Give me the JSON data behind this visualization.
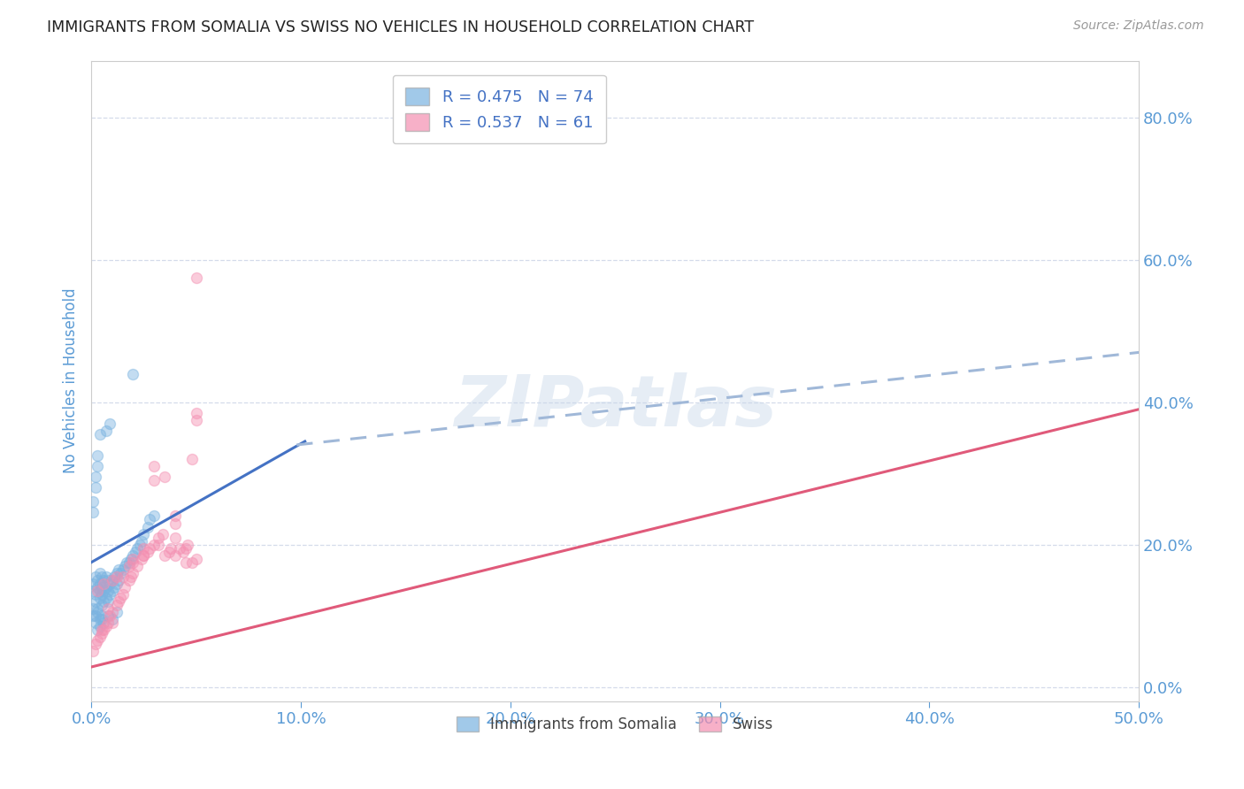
{
  "title": "IMMIGRANTS FROM SOMALIA VS SWISS NO VEHICLES IN HOUSEHOLD CORRELATION CHART",
  "source": "Source: ZipAtlas.com",
  "ylabel": "No Vehicles in Household",
  "xlim": [
    0.0,
    0.5
  ],
  "ylim": [
    -0.02,
    0.88
  ],
  "yticks": [
    0.0,
    0.2,
    0.4,
    0.6,
    0.8
  ],
  "xticks": [
    0.0,
    0.1,
    0.2,
    0.3,
    0.4,
    0.5
  ],
  "background_color": "#ffffff",
  "grid_color": "#d0d8e8",
  "axis_label_color": "#5b9bd5",
  "tick_label_color": "#5b9bd5",
  "blue_color": "#7ab3e0",
  "pink_color": "#f48fb1",
  "blue_line_color": "#4472c4",
  "pink_line_color": "#e05a7a",
  "dashed_line_color": "#a0b8d8",
  "legend_R1": "R = 0.475",
  "legend_N1": "N = 74",
  "legend_R2": "R = 0.537",
  "legend_N2": "N = 61",
  "somalia_x": [
    0.001,
    0.001,
    0.002,
    0.002,
    0.002,
    0.003,
    0.003,
    0.003,
    0.004,
    0.004,
    0.004,
    0.004,
    0.005,
    0.005,
    0.005,
    0.005,
    0.006,
    0.006,
    0.006,
    0.007,
    0.007,
    0.007,
    0.008,
    0.008,
    0.008,
    0.009,
    0.009,
    0.01,
    0.01,
    0.011,
    0.011,
    0.012,
    0.012,
    0.013,
    0.013,
    0.014,
    0.015,
    0.016,
    0.017,
    0.018,
    0.019,
    0.02,
    0.021,
    0.022,
    0.023,
    0.024,
    0.025,
    0.027,
    0.028,
    0.03,
    0.003,
    0.002,
    0.004,
    0.005,
    0.006,
    0.008,
    0.01,
    0.012,
    0.001,
    0.001,
    0.002,
    0.003,
    0.004,
    0.005,
    0.001,
    0.001,
    0.002,
    0.002,
    0.003,
    0.003,
    0.004,
    0.007,
    0.009,
    0.02
  ],
  "somalia_y": [
    0.135,
    0.145,
    0.12,
    0.13,
    0.155,
    0.11,
    0.14,
    0.15,
    0.125,
    0.135,
    0.145,
    0.16,
    0.115,
    0.13,
    0.14,
    0.155,
    0.12,
    0.135,
    0.15,
    0.125,
    0.14,
    0.155,
    0.12,
    0.135,
    0.15,
    0.13,
    0.145,
    0.135,
    0.15,
    0.14,
    0.155,
    0.145,
    0.16,
    0.15,
    0.165,
    0.16,
    0.165,
    0.17,
    0.175,
    0.175,
    0.18,
    0.185,
    0.19,
    0.195,
    0.2,
    0.205,
    0.215,
    0.225,
    0.235,
    0.24,
    0.08,
    0.09,
    0.085,
    0.095,
    0.09,
    0.1,
    0.095,
    0.105,
    0.1,
    0.11,
    0.1,
    0.105,
    0.095,
    0.1,
    0.245,
    0.26,
    0.28,
    0.295,
    0.31,
    0.325,
    0.355,
    0.36,
    0.37,
    0.44
  ],
  "swiss_x": [
    0.001,
    0.002,
    0.003,
    0.004,
    0.005,
    0.006,
    0.007,
    0.008,
    0.009,
    0.01,
    0.012,
    0.013,
    0.014,
    0.015,
    0.016,
    0.018,
    0.019,
    0.02,
    0.022,
    0.024,
    0.025,
    0.027,
    0.028,
    0.03,
    0.032,
    0.034,
    0.035,
    0.037,
    0.038,
    0.04,
    0.042,
    0.044,
    0.046,
    0.048,
    0.05,
    0.003,
    0.006,
    0.01,
    0.015,
    0.02,
    0.025,
    0.03,
    0.035,
    0.04,
    0.045,
    0.05,
    0.005,
    0.01,
    0.02,
    0.03,
    0.04,
    0.05,
    0.008,
    0.012,
    0.018,
    0.025,
    0.032,
    0.04,
    0.045,
    0.048,
    0.05
  ],
  "swiss_y": [
    0.05,
    0.06,
    0.065,
    0.07,
    0.075,
    0.08,
    0.085,
    0.09,
    0.1,
    0.105,
    0.115,
    0.12,
    0.125,
    0.13,
    0.14,
    0.15,
    0.155,
    0.16,
    0.17,
    0.18,
    0.185,
    0.19,
    0.195,
    0.2,
    0.21,
    0.215,
    0.185,
    0.19,
    0.195,
    0.185,
    0.195,
    0.19,
    0.2,
    0.175,
    0.18,
    0.135,
    0.145,
    0.15,
    0.155,
    0.175,
    0.185,
    0.29,
    0.295,
    0.24,
    0.195,
    0.375,
    0.08,
    0.09,
    0.18,
    0.31,
    0.23,
    0.385,
    0.11,
    0.155,
    0.17,
    0.195,
    0.2,
    0.21,
    0.175,
    0.32,
    0.575
  ],
  "somalia_trend_x": [
    0.0,
    0.102
  ],
  "somalia_trend_y": [
    0.175,
    0.345
  ],
  "dashed_trend_x": [
    0.098,
    0.5
  ],
  "dashed_trend_y": [
    0.34,
    0.47
  ],
  "swiss_trend_x": [
    0.0,
    0.5
  ],
  "swiss_trend_y": [
    0.028,
    0.39
  ],
  "watermark": "ZIPatlas",
  "marker_size": 75,
  "marker_alpha": 0.45,
  "line_width": 2.2
}
